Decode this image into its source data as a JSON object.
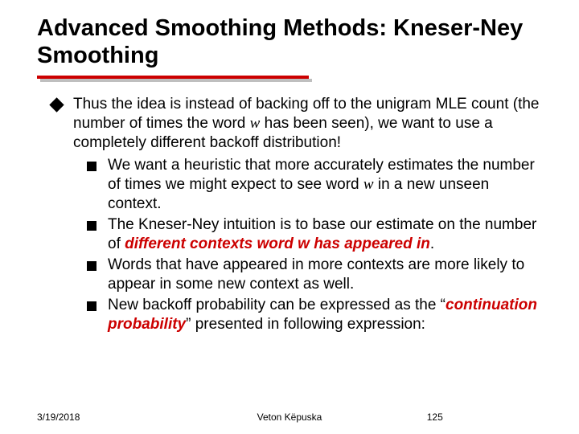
{
  "title": "Advanced Smoothing Methods: Kneser-Ney Smoothing",
  "colors": {
    "accent": "#cc0000",
    "rule_shadow": "#bfbfbf",
    "text": "#000000",
    "background": "#ffffff"
  },
  "typography": {
    "title_fontsize": 29,
    "body_fontsize": 19,
    "footer_fontsize": 12,
    "title_weight": 700
  },
  "bullets": {
    "top": {
      "pre": "Thus the idea is instead of backing off to the unigram MLE count (the number of times the word ",
      "w": "w",
      "post": " has been seen), we want to use a completely different backoff distribution!"
    },
    "subs": [
      {
        "pre": "We want a heuristic that more accurately estimates the number of times we might expect to see word ",
        "w": "w",
        "post": " in a new unseen context."
      },
      {
        "pre": "The Kneser-Ney intuition is to base our estimate on the number of ",
        "strong1": "different contexts word ",
        "w": "w",
        "strong2": " has appeared in",
        "post": "."
      },
      {
        "text": "Words that have appeared in more contexts are more likely to appear in some new context as well."
      },
      {
        "pre": "New backoff probability can be expressed as the “",
        "strong": "continuation probability",
        "post": "” presented in following expression:"
      }
    ]
  },
  "footer": {
    "date": "3/19/2018",
    "author": "Veton Këpuska",
    "page": "125"
  }
}
